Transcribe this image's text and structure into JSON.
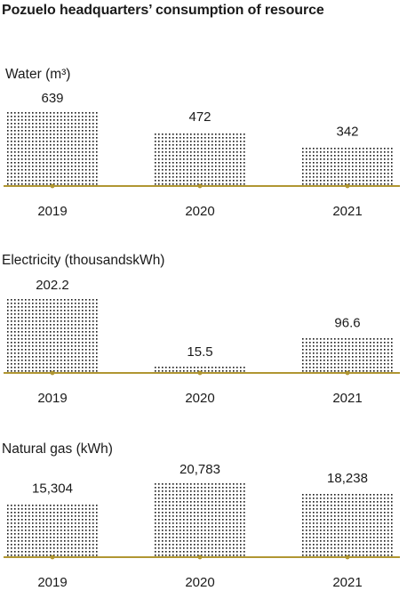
{
  "title": "Pozuelo headquarters’ consumption of resource",
  "colors": {
    "dots": "#1a1a1a",
    "baseline": "#b09632",
    "text": "#1a1a1a"
  },
  "chart_data": [
    {
      "type": "bar",
      "title": "Water (m³)",
      "categories": [
        "2019",
        "2020",
        "2021"
      ],
      "values": [
        639,
        472,
        342
      ],
      "value_labels": [
        "639",
        "472",
        "342"
      ]
    },
    {
      "type": "bar",
      "title": "Electricity (thousandskWh)",
      "categories": [
        "2019",
        "2020",
        "2021"
      ],
      "values": [
        202.2,
        15.5,
        96.6
      ],
      "value_labels": [
        "202.2",
        "15.5",
        "96.6"
      ]
    },
    {
      "type": "bar",
      "title": "Natural gas (kWh)",
      "categories": [
        "2019",
        "2020",
        "2021"
      ],
      "values": [
        15304,
        20783,
        18238
      ],
      "value_labels": [
        "15,304",
        "20,783",
        "18,238"
      ]
    }
  ]
}
